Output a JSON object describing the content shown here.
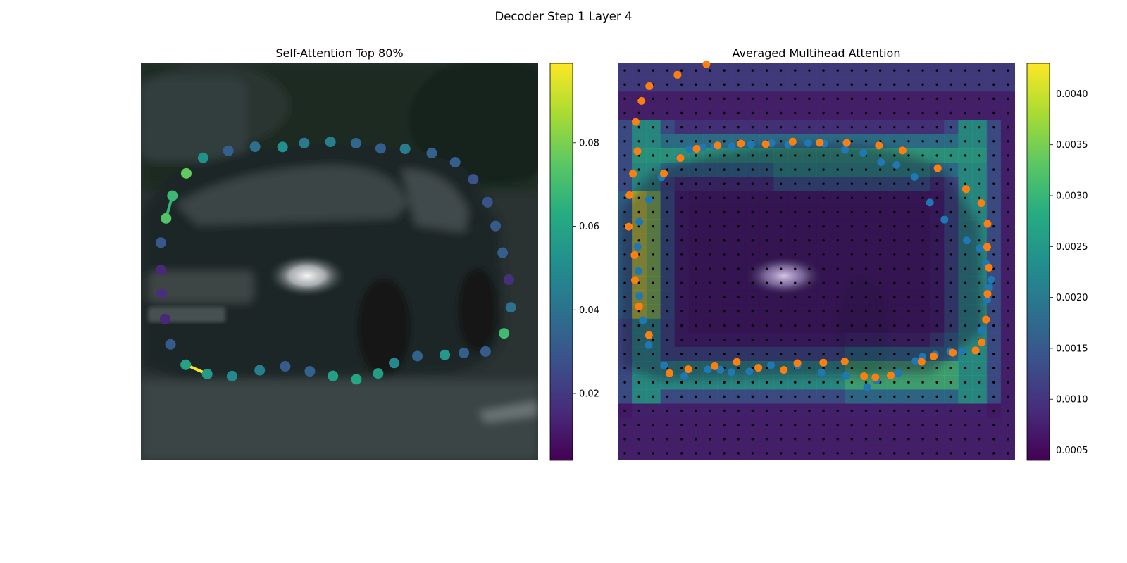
{
  "figure": {
    "suptitle": "Decoder Step 1 Layer 4"
  },
  "chart_data": [
    {
      "type": "scatter",
      "panel": "left",
      "title": "Self-Attention Top 80%",
      "background": "blurred street photo of a dark station wagon car",
      "xlim": [
        0,
        224
      ],
      "ylim": [
        224,
        0
      ],
      "axes_visible": false,
      "grid": false,
      "colormap": "viridis",
      "colorbar": {
        "ticks": [
          0.02,
          0.04,
          0.06,
          0.08
        ],
        "range": [
          0.004,
          0.099
        ]
      },
      "points": [
        {
          "x": 25.6,
          "y": 62.1,
          "v": 0.076
        },
        {
          "x": 35.1,
          "y": 53.3,
          "v": 0.052
        },
        {
          "x": 49.3,
          "y": 49.4,
          "v": 0.033
        },
        {
          "x": 64.4,
          "y": 47.1,
          "v": 0.039
        },
        {
          "x": 79.9,
          "y": 47.2,
          "v": 0.051
        },
        {
          "x": 92.1,
          "y": 45.0,
          "v": 0.043
        },
        {
          "x": 106.9,
          "y": 44.3,
          "v": 0.045
        },
        {
          "x": 121.3,
          "y": 45.1,
          "v": 0.036
        },
        {
          "x": 135.2,
          "y": 48.0,
          "v": 0.033
        },
        {
          "x": 149.0,
          "y": 48.3,
          "v": 0.044
        },
        {
          "x": 164.0,
          "y": 50.6,
          "v": 0.034
        },
        {
          "x": 177.2,
          "y": 55.8,
          "v": 0.033
        },
        {
          "x": 187.4,
          "y": 65.4,
          "v": 0.028
        },
        {
          "x": 195.5,
          "y": 78.4,
          "v": 0.028
        },
        {
          "x": 200.0,
          "y": 91.8,
          "v": 0.031
        },
        {
          "x": 204.0,
          "y": 106.9,
          "v": 0.033
        },
        {
          "x": 207.5,
          "y": 122.1,
          "v": 0.017
        },
        {
          "x": 208.6,
          "y": 137.7,
          "v": 0.04
        },
        {
          "x": 204.8,
          "y": 152.4,
          "v": 0.069
        },
        {
          "x": 194.4,
          "y": 162.6,
          "v": 0.032
        },
        {
          "x": 182.1,
          "y": 163.4,
          "v": 0.033
        },
        {
          "x": 171.4,
          "y": 164.5,
          "v": 0.055
        },
        {
          "x": 155.9,
          "y": 165.2,
          "v": 0.034
        },
        {
          "x": 142.8,
          "y": 169.1,
          "v": 0.049
        },
        {
          "x": 133.8,
          "y": 175.0,
          "v": 0.057
        },
        {
          "x": 121.5,
          "y": 178.3,
          "v": 0.061
        },
        {
          "x": 108.3,
          "y": 176.4,
          "v": 0.058
        },
        {
          "x": 95.3,
          "y": 173.8,
          "v": 0.034
        },
        {
          "x": 81.4,
          "y": 171.0,
          "v": 0.032
        },
        {
          "x": 67.0,
          "y": 173.2,
          "v": 0.045
        },
        {
          "x": 51.4,
          "y": 176.5,
          "v": 0.049
        },
        {
          "x": 37.4,
          "y": 175.3,
          "v": 0.056
        },
        {
          "x": 25.3,
          "y": 170.1,
          "v": 0.059
        },
        {
          "x": 16.7,
          "y": 158.6,
          "v": 0.031
        },
        {
          "x": 13.7,
          "y": 144.3,
          "v": 0.015
        },
        {
          "x": 11.8,
          "y": 129.9,
          "v": 0.017
        },
        {
          "x": 11.3,
          "y": 116.6,
          "v": 0.015
        },
        {
          "x": 11.3,
          "y": 101.2,
          "v": 0.03
        },
        {
          "x": 14.2,
          "y": 87.5,
          "v": 0.073
        },
        {
          "x": 17.8,
          "y": 74.7,
          "v": 0.068
        }
      ],
      "links": [
        {
          "from": [
            25.3,
            170.1
          ],
          "to": [
            37.4,
            175.3
          ],
          "v": 0.099
        },
        {
          "from": [
            14.2,
            87.5
          ],
          "to": [
            17.8,
            74.7
          ],
          "v": 0.066
        }
      ]
    },
    {
      "type": "heatmap",
      "panel": "right",
      "title": "Averaged Multihead Attention",
      "background": "same car photo, dimmed, overlaid by a 28x28 attention grid",
      "grid_size": [
        28,
        28
      ],
      "xlim": [
        0,
        224
      ],
      "ylim": [
        224,
        0
      ],
      "axes_visible": false,
      "colormap": "viridis",
      "colorbar": {
        "ticks": [
          0.0005,
          0.001,
          0.0015,
          0.002,
          0.0025,
          0.003,
          0.0035,
          0.004
        ],
        "range": [
          0.0004,
          0.0043
        ]
      },
      "heatmap_desc": "High attention along a rounded-rectangle band (rows ~4-22, cols ~1-25); strongest on the left edge near rows 10-16 (~0.0040); inside region low (~0.0006).",
      "grid_points_color": "#000000",
      "series": [
        {
          "name": "",
          "color": "#1f77b4",
          "points": [
            [
              34.8,
              53.0
            ],
            [
              40.5,
              48.4
            ],
            [
              47.8,
              47.3
            ],
            [
              54.8,
              46.8
            ],
            [
              64.3,
              46.8
            ],
            [
              75.2,
              45.7
            ],
            [
              86.6,
              45.1
            ],
            [
              96.1,
              45.9
            ],
            [
              107.4,
              45.0
            ],
            [
              116.6,
              45.3
            ],
            [
              128.2,
              48.9
            ],
            [
              138.5,
              50.6
            ],
            [
              148.5,
              55.8
            ],
            [
              157.2,
              57.3
            ],
            [
              167.3,
              64.1
            ],
            [
              176.0,
              78.6
            ],
            [
              184.2,
              88.2
            ],
            [
              196.8,
              100.0
            ],
            [
              204.0,
              104.4
            ],
            [
              207.6,
              113.0
            ],
            [
              210.5,
              122.1
            ],
            [
              209.4,
              126.6
            ],
            [
              208.3,
              133.4
            ],
            [
              205.0,
              150.4
            ],
            [
              202.2,
              162.0
            ],
            [
              194.1,
              162.6
            ],
            [
              187.4,
              162.5
            ],
            [
              178.8,
              164.4
            ],
            [
              171.8,
              165.6
            ],
            [
              167.9,
              168.0
            ],
            [
              158.2,
              175.0
            ],
            [
              145.9,
              178.9
            ],
            [
              140.6,
              182.8
            ],
            [
              128.9,
              176.2
            ],
            [
              114.9,
              174.5
            ],
            [
              101.3,
              170.6
            ],
            [
              86.4,
              170.4
            ],
            [
              74.2,
              173.9
            ],
            [
              64.1,
              174.3
            ],
            [
              57.9,
              172.9
            ],
            [
              50.8,
              172.7
            ],
            [
              37.6,
              176.6
            ],
            [
              26.1,
              170.5
            ],
            [
              17.5,
              159.0
            ],
            [
              14.3,
              145.0
            ],
            [
              12.2,
              131.3
            ],
            [
              11.6,
              117.3
            ],
            [
              11.2,
              103.5
            ],
            [
              12.2,
              89.4
            ],
            [
              17.6,
              76.9
            ],
            [
              24.6,
              64.3
            ]
          ]
        },
        {
          "name": "",
          "color": "#ff7f0e",
          "points": [
            [
              26.0,
              62.2
            ],
            [
              35.3,
              53.4
            ],
            [
              44.5,
              48.2
            ],
            [
              56.3,
              46.4
            ],
            [
              69.4,
              45.3
            ],
            [
              83.5,
              45.6
            ],
            [
              98.6,
              44.2
            ],
            [
              113.9,
              44.8
            ],
            [
              129.1,
              44.9
            ],
            [
              147.3,
              46.4
            ],
            [
              160.6,
              49.2
            ],
            [
              180.4,
              59.2
            ],
            [
              196.4,
              71.0
            ],
            [
              205.0,
              78.9
            ],
            [
              208.5,
              90.6
            ],
            [
              208.3,
              103.6
            ],
            [
              209.3,
              115.3
            ],
            [
              208.5,
              130.1
            ],
            [
              207.6,
              144.6
            ],
            [
              205.2,
              157.4
            ],
            [
              201.8,
              162.0
            ],
            [
              188.9,
              163.3
            ],
            [
              178.1,
              165.3
            ],
            [
              171.3,
              168.4
            ],
            [
              153.9,
              176.1
            ],
            [
              145.3,
              177.2
            ],
            [
              138.9,
              176.6
            ],
            [
              128.0,
              168.2
            ],
            [
              115.9,
              168.9
            ],
            [
              101.3,
              169.2
            ],
            [
              93.6,
              173.0
            ],
            [
              79.3,
              171.8
            ],
            [
              67.1,
              168.5
            ],
            [
              54.7,
              170.9
            ],
            [
              39.8,
              172.6
            ],
            [
              29.2,
              174.9
            ],
            [
              17.6,
              153.4
            ],
            [
              12.0,
              137.2
            ],
            [
              9.7,
              122.4
            ],
            [
              9.5,
              108.2
            ],
            [
              6.2,
              92.2
            ],
            [
              6.6,
              74.4
            ],
            [
              8.6,
              62.3
            ],
            [
              11.1,
              49.6
            ],
            [
              10.1,
              33.0
            ],
            [
              13.4,
              21.2
            ],
            [
              17.8,
              12.9
            ],
            [
              33.7,
              6.5
            ],
            [
              50.0,
              0.5
            ]
          ]
        }
      ]
    }
  ]
}
